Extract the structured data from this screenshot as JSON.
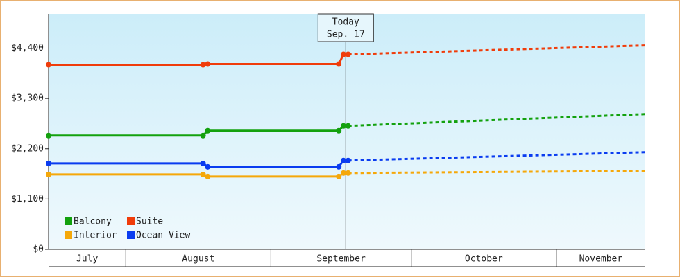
{
  "chart_data": {
    "type": "line",
    "ylim": [
      0,
      5150
    ],
    "yticks": [
      {
        "value": 0,
        "label": "$0"
      },
      {
        "value": 1100,
        "label": "$1,100"
      },
      {
        "value": 2200,
        "label": "$2,200"
      },
      {
        "value": 3300,
        "label": "$3,300"
      },
      {
        "value": 4400,
        "label": "$4,400"
      }
    ],
    "xlim": [
      14.5,
      142
    ],
    "xticks": [
      31,
      62,
      92,
      123
    ],
    "months": [
      "July",
      "August",
      "September",
      "October",
      "November"
    ],
    "x": [
      14.5,
      47.5,
      48.5,
      76.5,
      77.5,
      78.5
    ],
    "forecast_x": [
      78.5,
      142
    ],
    "today_x": 78,
    "today_label": [
      "Today",
      "Sep. 17"
    ],
    "series": [
      {
        "name": "Balcony",
        "color": "#13a10e",
        "values": [
          2488,
          2488,
          2594,
          2594,
          2700,
          2700
        ],
        "forecast": [
          2700,
          2958
        ]
      },
      {
        "name": "Suite",
        "color": "#f03c0a",
        "values": [
          4036,
          4036,
          4051,
          4051,
          4263,
          4263
        ],
        "forecast": [
          4263,
          4460
        ]
      },
      {
        "name": "Interior",
        "color": "#f5a80a",
        "values": [
          1638,
          1638,
          1593,
          1593,
          1669,
          1669
        ],
        "forecast": [
          1669,
          1714
        ]
      },
      {
        "name": "Ocean View",
        "color": "#0a3cf0",
        "values": [
          1881,
          1881,
          1805,
          1805,
          1942,
          1942
        ],
        "forecast": [
          1942,
          2124
        ]
      }
    ]
  }
}
